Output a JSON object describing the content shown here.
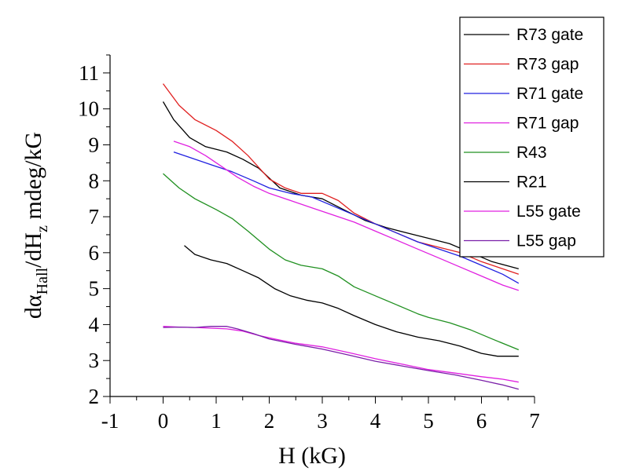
{
  "chart_data": {
    "type": "line",
    "xlabel": "H (kG)",
    "ylabel_parts": {
      "main": "dα",
      "sub1": "Hall",
      "mid": "/dH",
      "sub2": "z",
      "tail": " mdeg/kG"
    },
    "xlim": [
      -1,
      7
    ],
    "ylim": [
      2,
      11.5
    ],
    "xticks": [
      -1,
      0,
      1,
      2,
      3,
      4,
      5,
      6,
      7
    ],
    "yticks": [
      2,
      3,
      4,
      5,
      6,
      7,
      8,
      9,
      10,
      11
    ],
    "grid": false,
    "legend_position": "top-right",
    "series": [
      {
        "name": "R73 gate",
        "color": "#000000",
        "x": [
          0,
          0.2,
          0.5,
          0.8,
          1.2,
          1.5,
          1.8,
          2.2,
          2.6,
          3.0,
          3.4,
          3.8,
          4.2,
          4.6,
          5.0,
          5.4,
          5.8,
          6.2,
          6.7
        ],
        "y": [
          10.2,
          9.7,
          9.2,
          8.95,
          8.8,
          8.6,
          8.35,
          7.8,
          7.6,
          7.5,
          7.2,
          6.9,
          6.7,
          6.55,
          6.4,
          6.25,
          6.0,
          5.75,
          5.55
        ]
      },
      {
        "name": "R73 gap",
        "color": "#e02020",
        "x": [
          0,
          0.3,
          0.6,
          1.0,
          1.3,
          1.6,
          2.0,
          2.3,
          2.6,
          3.0,
          3.3,
          3.6,
          4.0,
          4.4,
          4.8,
          5.2,
          5.6,
          6.0,
          6.4,
          6.7
        ],
        "y": [
          10.7,
          10.1,
          9.7,
          9.4,
          9.1,
          8.7,
          8.05,
          7.8,
          7.65,
          7.65,
          7.45,
          7.1,
          6.8,
          6.55,
          6.3,
          6.15,
          6.0,
          5.75,
          5.55,
          5.4
        ]
      },
      {
        "name": "R71 gate",
        "color": "#2020e0",
        "x": [
          0.2,
          0.5,
          0.9,
          1.3,
          1.7,
          2.0,
          2.4,
          2.8,
          3.2,
          3.6,
          4.0,
          4.4,
          4.8,
          5.2,
          5.6,
          6.0,
          6.4,
          6.7
        ],
        "y": [
          8.8,
          8.65,
          8.45,
          8.25,
          8.0,
          7.8,
          7.65,
          7.55,
          7.3,
          7.05,
          6.8,
          6.55,
          6.3,
          6.1,
          5.9,
          5.65,
          5.4,
          5.15
        ]
      },
      {
        "name": "R71 gap",
        "color": "#e020e0",
        "x": [
          0.2,
          0.5,
          0.8,
          1.1,
          1.4,
          1.7,
          2.0,
          2.4,
          2.8,
          3.2,
          3.6,
          4.0,
          4.4,
          4.8,
          5.2,
          5.6,
          6.0,
          6.4,
          6.7
        ],
        "y": [
          9.1,
          8.95,
          8.7,
          8.4,
          8.1,
          7.85,
          7.65,
          7.45,
          7.25,
          7.05,
          6.85,
          6.6,
          6.35,
          6.1,
          5.85,
          5.6,
          5.35,
          5.1,
          4.95
        ]
      },
      {
        "name": "R43",
        "color": "#209020",
        "x": [
          0,
          0.3,
          0.6,
          1.0,
          1.3,
          1.6,
          2.0,
          2.3,
          2.6,
          3.0,
          3.3,
          3.6,
          4.0,
          4.4,
          4.8,
          5.0,
          5.4,
          5.8,
          6.2,
          6.7
        ],
        "y": [
          8.2,
          7.8,
          7.5,
          7.2,
          6.95,
          6.6,
          6.1,
          5.8,
          5.65,
          5.55,
          5.35,
          5.05,
          4.8,
          4.55,
          4.3,
          4.2,
          4.05,
          3.85,
          3.6,
          3.3
        ]
      },
      {
        "name": "R21",
        "color": "#000000",
        "x": [
          0.4,
          0.6,
          0.9,
          1.2,
          1.5,
          1.8,
          2.1,
          2.4,
          2.7,
          3.0,
          3.3,
          3.6,
          4.0,
          4.4,
          4.8,
          5.2,
          5.6,
          6.0,
          6.3,
          6.7
        ],
        "y": [
          6.2,
          5.95,
          5.8,
          5.7,
          5.5,
          5.3,
          5.0,
          4.8,
          4.68,
          4.6,
          4.45,
          4.25,
          4.0,
          3.8,
          3.65,
          3.55,
          3.4,
          3.2,
          3.12,
          3.12
        ]
      },
      {
        "name": "L55 gate",
        "color": "#e020e0",
        "x": [
          0,
          0.3,
          0.6,
          0.9,
          1.2,
          1.5,
          1.8,
          2.1,
          2.5,
          3.0,
          3.5,
          4.0,
          4.5,
          5.0,
          5.5,
          6.0,
          6.4,
          6.7
        ],
        "y": [
          3.95,
          3.93,
          3.92,
          3.9,
          3.88,
          3.82,
          3.7,
          3.6,
          3.48,
          3.38,
          3.22,
          3.05,
          2.9,
          2.75,
          2.65,
          2.55,
          2.48,
          2.4
        ]
      },
      {
        "name": "L55 gap",
        "color": "#7a1fa8",
        "x": [
          0,
          0.3,
          0.6,
          0.9,
          1.2,
          1.4,
          1.7,
          2.0,
          2.5,
          3.0,
          3.5,
          4.0,
          4.5,
          5.0,
          5.5,
          6.0,
          6.4,
          6.7
        ],
        "y": [
          3.92,
          3.93,
          3.92,
          3.95,
          3.95,
          3.88,
          3.75,
          3.6,
          3.45,
          3.32,
          3.15,
          2.98,
          2.85,
          2.72,
          2.6,
          2.45,
          2.32,
          2.2
        ]
      }
    ]
  }
}
